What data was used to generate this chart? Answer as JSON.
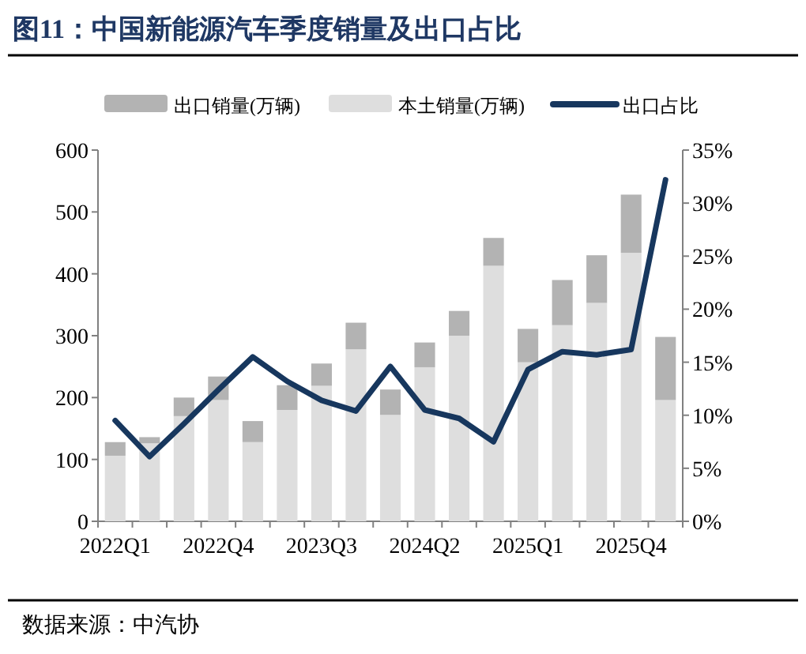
{
  "chart_data": {
    "type": "bar",
    "title": "图11：中国新能源汽车季度销量及出口占比",
    "stacked": true,
    "legend": "top",
    "marker": "none",
    "line_style": "solid",
    "grid": false,
    "categories": [
      "2022Q1",
      null,
      null,
      "2022Q4",
      null,
      null,
      "2023Q3",
      null,
      null,
      "2024Q2",
      null,
      null,
      "2025Q1",
      null,
      null,
      "2025Q4",
      null
    ],
    "ylim": [
      0,
      600
    ],
    "yticks": [
      0,
      100,
      200,
      300,
      400,
      500,
      600
    ],
    "y2lim": [
      0,
      35
    ],
    "y2ticks": [
      {
        "value": 0,
        "label": "0%"
      },
      {
        "value": 5,
        "label": "5%"
      },
      {
        "value": 10,
        "label": "10%"
      },
      {
        "value": 15,
        "label": "15%"
      },
      {
        "value": 20,
        "label": "20%"
      },
      {
        "value": 25,
        "label": "25%"
      },
      {
        "value": 30,
        "label": "30%"
      },
      {
        "value": 35,
        "label": "35%"
      }
    ],
    "series": [
      {
        "name": "本土销量(万辆)",
        "color": "#dedede",
        "values": [
          106,
          126,
          170,
          196,
          128,
          180,
          219,
          278,
          172,
          249,
          300,
          413,
          257,
          317,
          353,
          434,
          196
        ]
      },
      {
        "name": "出口销量(万辆)",
        "color": "#b3b3b3",
        "values": [
          22,
          10,
          30,
          38,
          34,
          40,
          36,
          43,
          41,
          40,
          40,
          45,
          54,
          73,
          77,
          94,
          102
        ]
      },
      {
        "name": "出口占比",
        "type": "line",
        "axis": "y2",
        "color": "#17375e",
        "values": [
          9.5,
          6.1,
          9.2,
          12.4,
          15.5,
          13.2,
          11.4,
          10.4,
          14.6,
          10.5,
          9.7,
          7.5,
          14.3,
          16.0,
          15.7,
          16.2,
          32.2
        ]
      }
    ],
    "annotations": [
      "数据来源：中汽协"
    ]
  }
}
